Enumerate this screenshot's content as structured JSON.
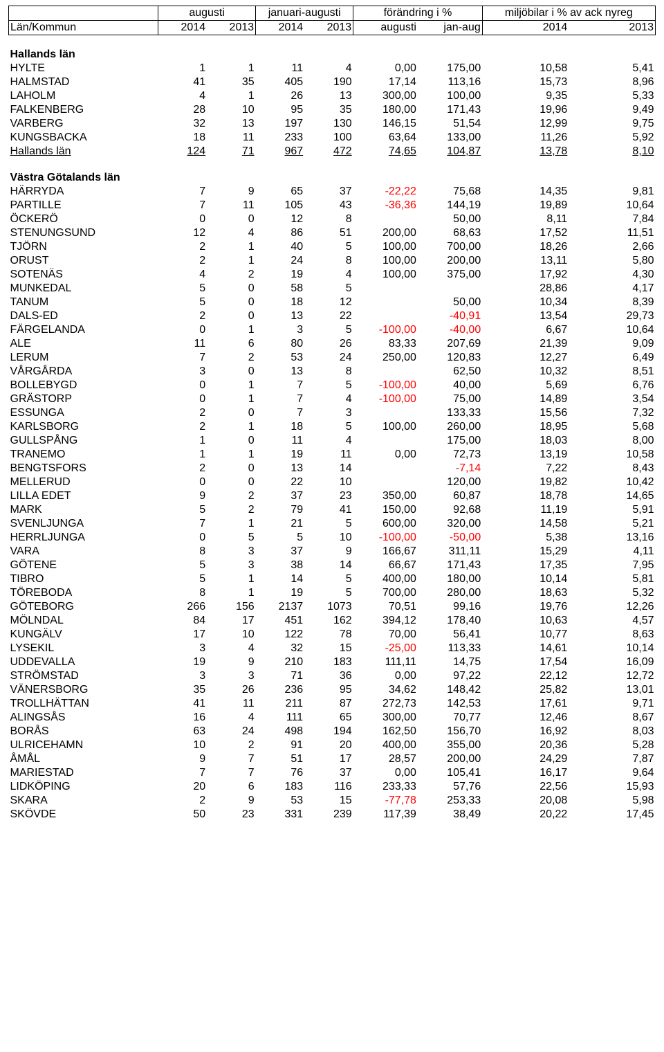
{
  "header": {
    "group1": "augusti",
    "group2": "januari-augusti",
    "group3": "förändring i %",
    "group4": "miljöbilar i % av ack nyreg",
    "rowLabel": "Län/Kommun",
    "y2014": "2014",
    "y2013": "2013",
    "augusti": "augusti",
    "janaug": "jan-aug"
  },
  "sections": [
    {
      "title": "Hallands län",
      "rows": [
        {
          "label": "HYLTE",
          "c": [
            "1",
            "1",
            "11",
            "4",
            "0,00",
            "175,00",
            "10,58",
            "5,41"
          ]
        },
        {
          "label": "HALMSTAD",
          "c": [
            "41",
            "35",
            "405",
            "190",
            "17,14",
            "113,16",
            "15,73",
            "8,96"
          ]
        },
        {
          "label": "LAHOLM",
          "c": [
            "4",
            "1",
            "26",
            "13",
            "300,00",
            "100,00",
            "9,35",
            "5,33"
          ]
        },
        {
          "label": "FALKENBERG",
          "c": [
            "28",
            "10",
            "95",
            "35",
            "180,00",
            "171,43",
            "19,96",
            "9,49"
          ]
        },
        {
          "label": "VARBERG",
          "c": [
            "32",
            "13",
            "197",
            "130",
            "146,15",
            "51,54",
            "12,99",
            "9,75"
          ]
        },
        {
          "label": "KUNGSBACKA",
          "c": [
            "18",
            "11",
            "233",
            "100",
            "63,64",
            "133,00",
            "11,26",
            "5,92"
          ]
        },
        {
          "label": "Hallands län",
          "underline": true,
          "c": [
            "124",
            "71",
            "967",
            "472",
            "74,65",
            "104,87",
            "13,78",
            "8,10"
          ]
        }
      ]
    },
    {
      "title": "Västra Götalands län",
      "rows": [
        {
          "label": "HÄRRYDA",
          "c": [
            "7",
            "9",
            "65",
            "37",
            "-22,22",
            "75,68",
            "14,35",
            "9,81"
          ]
        },
        {
          "label": "PARTILLE",
          "c": [
            "7",
            "11",
            "105",
            "43",
            "-36,36",
            "144,19",
            "19,89",
            "10,64"
          ]
        },
        {
          "label": "ÖCKERÖ",
          "c": [
            "0",
            "0",
            "12",
            "8",
            "",
            "50,00",
            "8,11",
            "7,84"
          ]
        },
        {
          "label": "STENUNGSUND",
          "c": [
            "12",
            "4",
            "86",
            "51",
            "200,00",
            "68,63",
            "17,52",
            "11,51"
          ]
        },
        {
          "label": "TJÖRN",
          "c": [
            "2",
            "1",
            "40",
            "5",
            "100,00",
            "700,00",
            "18,26",
            "2,66"
          ]
        },
        {
          "label": "ORUST",
          "c": [
            "2",
            "1",
            "24",
            "8",
            "100,00",
            "200,00",
            "13,11",
            "5,80"
          ]
        },
        {
          "label": "SOTENÄS",
          "c": [
            "4",
            "2",
            "19",
            "4",
            "100,00",
            "375,00",
            "17,92",
            "4,30"
          ]
        },
        {
          "label": "MUNKEDAL",
          "c": [
            "5",
            "0",
            "58",
            "5",
            "",
            "",
            "28,86",
            "4,17"
          ]
        },
        {
          "label": "TANUM",
          "c": [
            "5",
            "0",
            "18",
            "12",
            "",
            "50,00",
            "10,34",
            "8,39"
          ]
        },
        {
          "label": "DALS-ED",
          "c": [
            "2",
            "0",
            "13",
            "22",
            "",
            "-40,91",
            "13,54",
            "29,73"
          ]
        },
        {
          "label": "FÄRGELANDA",
          "c": [
            "0",
            "1",
            "3",
            "5",
            "-100,00",
            "-40,00",
            "6,67",
            "10,64"
          ]
        },
        {
          "label": "ALE",
          "c": [
            "11",
            "6",
            "80",
            "26",
            "83,33",
            "207,69",
            "21,39",
            "9,09"
          ]
        },
        {
          "label": "LERUM",
          "c": [
            "7",
            "2",
            "53",
            "24",
            "250,00",
            "120,83",
            "12,27",
            "6,49"
          ]
        },
        {
          "label": "VÅRGÅRDA",
          "c": [
            "3",
            "0",
            "13",
            "8",
            "",
            "62,50",
            "10,32",
            "8,51"
          ]
        },
        {
          "label": "BOLLEBYGD",
          "c": [
            "0",
            "1",
            "7",
            "5",
            "-100,00",
            "40,00",
            "5,69",
            "6,76"
          ]
        },
        {
          "label": "GRÄSTORP",
          "c": [
            "0",
            "1",
            "7",
            "4",
            "-100,00",
            "75,00",
            "14,89",
            "3,54"
          ]
        },
        {
          "label": "ESSUNGA",
          "c": [
            "2",
            "0",
            "7",
            "3",
            "",
            "133,33",
            "15,56",
            "7,32"
          ]
        },
        {
          "label": "KARLSBORG",
          "c": [
            "2",
            "1",
            "18",
            "5",
            "100,00",
            "260,00",
            "18,95",
            "5,68"
          ]
        },
        {
          "label": "GULLSPÅNG",
          "c": [
            "1",
            "0",
            "11",
            "4",
            "",
            "175,00",
            "18,03",
            "8,00"
          ]
        },
        {
          "label": "TRANEMO",
          "c": [
            "1",
            "1",
            "19",
            "11",
            "0,00",
            "72,73",
            "13,19",
            "10,58"
          ]
        },
        {
          "label": "BENGTSFORS",
          "c": [
            "2",
            "0",
            "13",
            "14",
            "",
            "-7,14",
            "7,22",
            "8,43"
          ]
        },
        {
          "label": "MELLERUD",
          "c": [
            "0",
            "0",
            "22",
            "10",
            "",
            "120,00",
            "19,82",
            "10,42"
          ]
        },
        {
          "label": "LILLA EDET",
          "c": [
            "9",
            "2",
            "37",
            "23",
            "350,00",
            "60,87",
            "18,78",
            "14,65"
          ]
        },
        {
          "label": "MARK",
          "c": [
            "5",
            "2",
            "79",
            "41",
            "150,00",
            "92,68",
            "11,19",
            "5,91"
          ]
        },
        {
          "label": "SVENLJUNGA",
          "c": [
            "7",
            "1",
            "21",
            "5",
            "600,00",
            "320,00",
            "14,58",
            "5,21"
          ]
        },
        {
          "label": "HERRLJUNGA",
          "c": [
            "0",
            "5",
            "5",
            "10",
            "-100,00",
            "-50,00",
            "5,38",
            "13,16"
          ]
        },
        {
          "label": "VARA",
          "c": [
            "8",
            "3",
            "37",
            "9",
            "166,67",
            "311,11",
            "15,29",
            "4,11"
          ]
        },
        {
          "label": "GÖTENE",
          "c": [
            "5",
            "3",
            "38",
            "14",
            "66,67",
            "171,43",
            "17,35",
            "7,95"
          ]
        },
        {
          "label": "TIBRO",
          "c": [
            "5",
            "1",
            "14",
            "5",
            "400,00",
            "180,00",
            "10,14",
            "5,81"
          ]
        },
        {
          "label": "TÖREBODA",
          "c": [
            "8",
            "1",
            "19",
            "5",
            "700,00",
            "280,00",
            "18,63",
            "5,32"
          ]
        },
        {
          "label": "GÖTEBORG",
          "c": [
            "266",
            "156",
            "2137",
            "1073",
            "70,51",
            "99,16",
            "19,76",
            "12,26"
          ]
        },
        {
          "label": "MÖLNDAL",
          "c": [
            "84",
            "17",
            "451",
            "162",
            "394,12",
            "178,40",
            "10,63",
            "4,57"
          ]
        },
        {
          "label": "KUNGÄLV",
          "c": [
            "17",
            "10",
            "122",
            "78",
            "70,00",
            "56,41",
            "10,77",
            "8,63"
          ]
        },
        {
          "label": "LYSEKIL",
          "c": [
            "3",
            "4",
            "32",
            "15",
            "-25,00",
            "113,33",
            "14,61",
            "10,14"
          ]
        },
        {
          "label": "UDDEVALLA",
          "c": [
            "19",
            "9",
            "210",
            "183",
            "111,11",
            "14,75",
            "17,54",
            "16,09"
          ]
        },
        {
          "label": "STRÖMSTAD",
          "c": [
            "3",
            "3",
            "71",
            "36",
            "0,00",
            "97,22",
            "22,12",
            "12,72"
          ]
        },
        {
          "label": "VÄNERSBORG",
          "c": [
            "35",
            "26",
            "236",
            "95",
            "34,62",
            "148,42",
            "25,82",
            "13,01"
          ]
        },
        {
          "label": "TROLLHÄTTAN",
          "c": [
            "41",
            "11",
            "211",
            "87",
            "272,73",
            "142,53",
            "17,61",
            "9,71"
          ]
        },
        {
          "label": "ALINGSÅS",
          "c": [
            "16",
            "4",
            "111",
            "65",
            "300,00",
            "70,77",
            "12,46",
            "8,67"
          ]
        },
        {
          "label": "BORÅS",
          "c": [
            "63",
            "24",
            "498",
            "194",
            "162,50",
            "156,70",
            "16,92",
            "8,03"
          ]
        },
        {
          "label": "ULRICEHAMN",
          "c": [
            "10",
            "2",
            "91",
            "20",
            "400,00",
            "355,00",
            "20,36",
            "5,28"
          ]
        },
        {
          "label": "ÅMÅL",
          "c": [
            "9",
            "7",
            "51",
            "17",
            "28,57",
            "200,00",
            "24,29",
            "7,87"
          ]
        },
        {
          "label": "MARIESTAD",
          "c": [
            "7",
            "7",
            "76",
            "37",
            "0,00",
            "105,41",
            "16,17",
            "9,64"
          ]
        },
        {
          "label": "LIDKÖPING",
          "c": [
            "20",
            "6",
            "183",
            "116",
            "233,33",
            "57,76",
            "22,56",
            "15,93"
          ]
        },
        {
          "label": "SKARA",
          "c": [
            "2",
            "9",
            "53",
            "15",
            "-77,78",
            "253,33",
            "20,08",
            "5,98"
          ]
        },
        {
          "label": "SKÖVDE",
          "c": [
            "50",
            "23",
            "331",
            "239",
            "117,39",
            "38,49",
            "20,22",
            "17,45"
          ]
        }
      ]
    }
  ]
}
